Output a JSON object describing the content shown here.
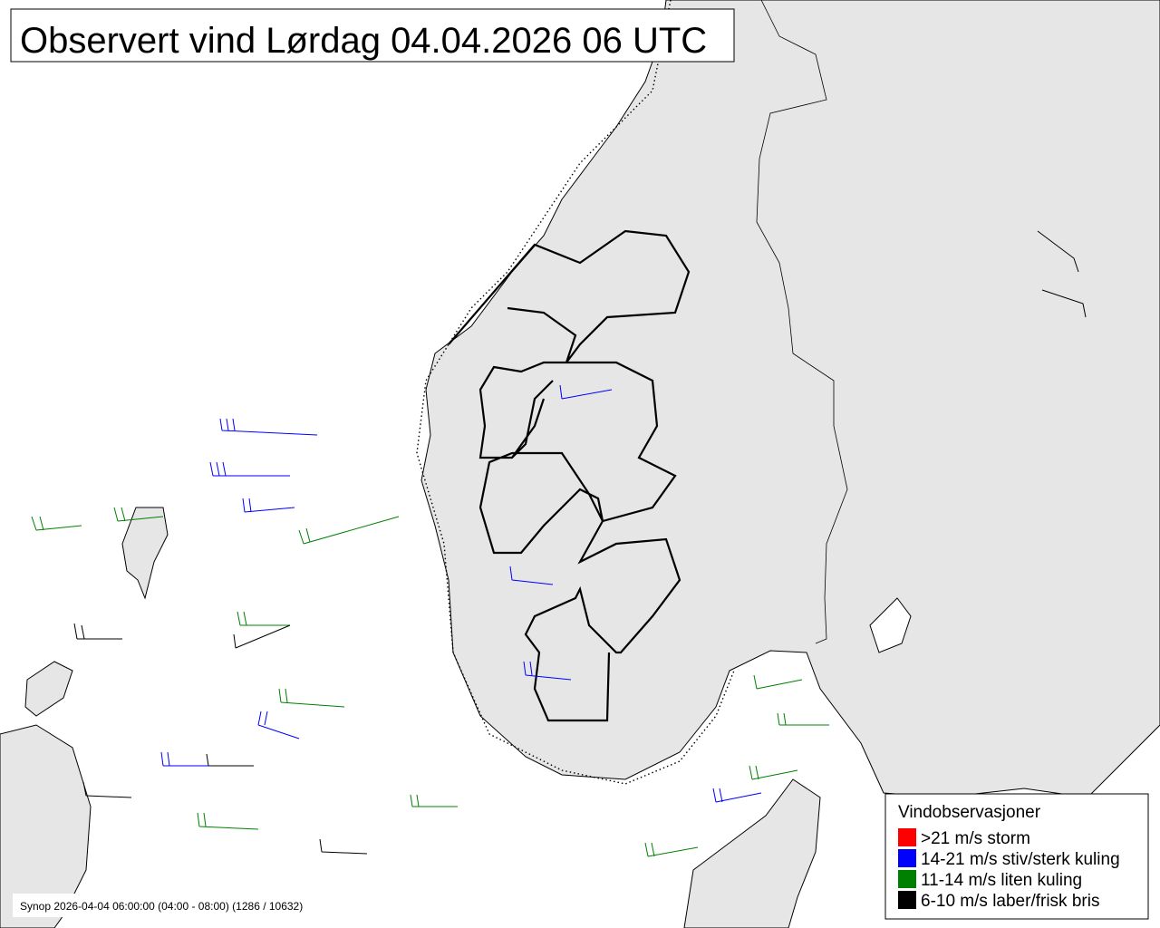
{
  "title": "Observert vind Lørdag 04.04.2026 06 UTC",
  "legend": {
    "title": "Vindobservasjoner",
    "items": [
      {
        "label": ">21 m/s storm",
        "color": "#ff0000"
      },
      {
        "label": "14-21 m/s stiv/sterk kuling",
        "color": "#0000ff"
      },
      {
        "label": "11-14 m/s liten kuling",
        "color": "#008000"
      },
      {
        "label": "6-10 m/s laber/frisk bris",
        "color": "#000000"
      }
    ]
  },
  "footer": "Synop 2026-04-04 06:00:00 (04:00 - 08:00) (1286 / 10632)"
}
